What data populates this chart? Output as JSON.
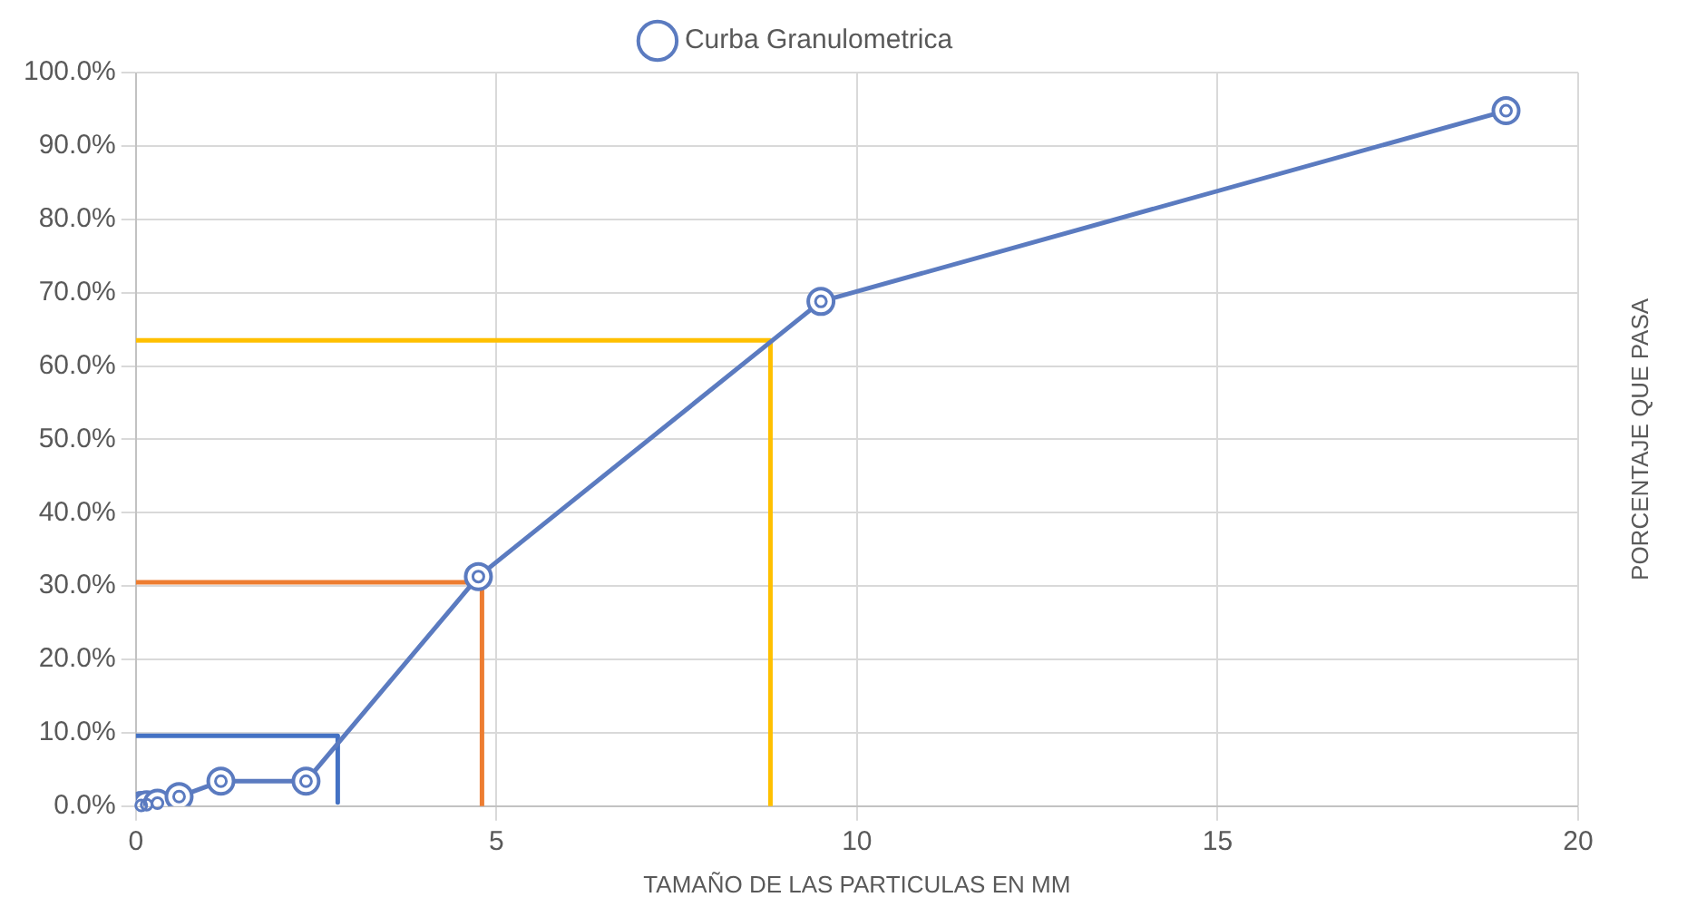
{
  "chart_data": {
    "type": "line",
    "xlabel": "TAMAÑO DE LAS PARTICULAS EN MM",
    "ylabel": "PORCENTAJE QUE PASA",
    "x": [
      0.075,
      0.15,
      0.3,
      0.6,
      1.18,
      2.36,
      4.75,
      9.5,
      19
    ],
    "series": [
      {
        "name": "Curba Granulometrica",
        "color": "#5b7bc0",
        "values": [
          0.1,
          0.2,
          0.4,
          1.3,
          3.4,
          3.4,
          31.3,
          68.8,
          94.8
        ],
        "marker": "circle"
      },
      {
        "type": "line",
        "color": "#4472c4",
        "x": [
          0,
          2.8,
          2.8
        ],
        "values": [
          9.6,
          9.6,
          0.5
        ],
        "marker": "none"
      },
      {
        "type": "line",
        "color": "#ed7d31",
        "x": [
          0,
          4.8,
          4.8
        ],
        "values": [
          30.5,
          30.5,
          0
        ],
        "marker": "none"
      },
      {
        "type": "line",
        "color": "#ffc000",
        "x": [
          0,
          8.8,
          8.8
        ],
        "values": [
          63.5,
          63.5,
          0
        ],
        "marker": "none"
      }
    ],
    "xlim": [
      0,
      20
    ],
    "xticks": [
      0,
      5,
      10,
      15,
      20
    ],
    "ylim": [
      0,
      100
    ],
    "yticks": [
      {
        "value": 0,
        "label": "0.0%"
      },
      {
        "value": 10,
        "label": "10.0%"
      },
      {
        "value": 20,
        "label": "20.0%"
      },
      {
        "value": 30,
        "label": "30.0%"
      },
      {
        "value": 40,
        "label": "40.0%"
      },
      {
        "value": 50,
        "label": "50.0%"
      },
      {
        "value": 60,
        "label": "60.0%"
      },
      {
        "value": 70,
        "label": "70.0%"
      },
      {
        "value": 80,
        "label": "80.0%"
      },
      {
        "value": 90,
        "label": "90.0%"
      },
      {
        "value": 100,
        "label": "100.0%"
      }
    ],
    "grid": true,
    "legend": "top",
    "line_style": "solid"
  }
}
